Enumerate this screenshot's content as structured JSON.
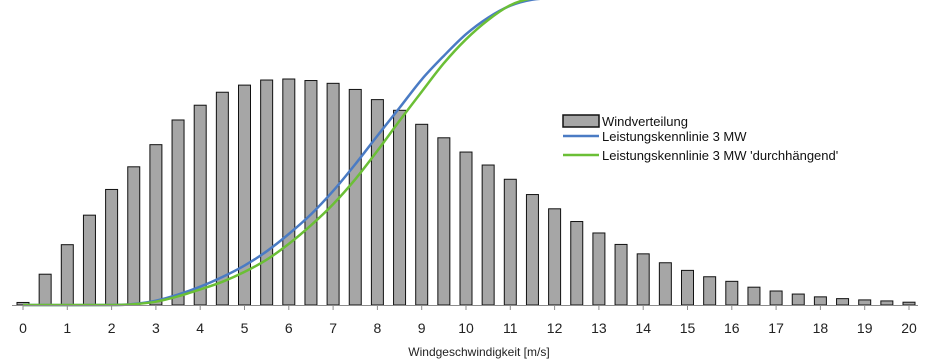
{
  "chart_data": {
    "type": "bar",
    "xlabel": "Windgeschwindigkeit [m/s]",
    "ylabel": "",
    "xlim": [
      0,
      20
    ],
    "ylim": [
      0,
      100
    ],
    "x_ticks": [
      0,
      1,
      2,
      3,
      4,
      5,
      6,
      7,
      8,
      9,
      10,
      11,
      12,
      13,
      14,
      15,
      16,
      17,
      18,
      19,
      20
    ],
    "bar_series": {
      "name": "Windverteilung",
      "color": "#a6a6a6",
      "x": [
        0,
        0.5,
        1,
        1.5,
        2,
        2.5,
        3,
        3.5,
        4,
        4.5,
        5,
        5.5,
        6,
        6.5,
        7,
        7.5,
        8,
        8.5,
        9,
        9.5,
        10,
        10.5,
        11,
        11.5,
        12,
        12.5,
        13,
        13.5,
        14,
        14.5,
        15,
        15.5,
        16,
        16.5,
        17,
        17.5,
        18,
        18.5,
        19,
        19.5,
        20
      ],
      "values": [
        1,
        12.1,
        23.7,
        35.3,
        45.4,
        54.3,
        63,
        72.7,
        78.5,
        83.6,
        86.4,
        88.4,
        88.8,
        88.2,
        87.1,
        84.7,
        80.7,
        76.5,
        71,
        65.7,
        60.1,
        55,
        49.4,
        43.4,
        37.8,
        32.8,
        28.3,
        23.8,
        20.1,
        16.6,
        13.6,
        11.1,
        9.3,
        7,
        5.5,
        4.3,
        3.2,
        2.5,
        2,
        1.6,
        1.1
      ]
    },
    "line_series": [
      {
        "name": "Leistungskennlinie 3 MW",
        "color": "#4a7bc4",
        "x": [
          0,
          2,
          2.5,
          3,
          3.5,
          4,
          4.5,
          5,
          5.5,
          6,
          6.5,
          7,
          7.5,
          8,
          8.5,
          9,
          9.5,
          10,
          10.5,
          11,
          11.5,
          12,
          13,
          14,
          16,
          18,
          20
        ],
        "values": [
          0,
          0,
          0.4,
          1.7,
          4.1,
          7.2,
          11,
          15.5,
          21.1,
          27.9,
          35.6,
          44.8,
          55.3,
          66.5,
          77.5,
          88.6,
          97.9,
          106.4,
          112.9,
          117.6,
          120,
          120.5,
          120.5,
          120.5,
          120.5,
          120.5,
          120.5
        ]
      },
      {
        "name": "Leistungskennlinie 3 MW 'durchhängend'",
        "color": "#6bbf36",
        "x": [
          0,
          2,
          2.5,
          3,
          3.5,
          4,
          4.5,
          5,
          5.5,
          6,
          6.5,
          7,
          7.5,
          8,
          8.5,
          9,
          9.5,
          10,
          10.5,
          11,
          11.5,
          12,
          13,
          14,
          16,
          18,
          20
        ],
        "values": [
          0,
          0,
          0.3,
          1.3,
          3.4,
          6.1,
          9.1,
          13,
          17.8,
          24,
          31.3,
          39.6,
          49.4,
          60.6,
          72.4,
          83.8,
          95,
          104.4,
          112,
          117.8,
          120.5,
          120.5,
          120.5,
          120.5,
          120.5,
          120.5,
          120.5
        ]
      }
    ],
    "legend": {
      "position": "center-right",
      "entries": [
        "Windverteilung",
        "Leistungskennlinie 3 MW",
        "Leistungskennlinie 3 MW 'durchhängend'"
      ]
    },
    "grid": false
  }
}
